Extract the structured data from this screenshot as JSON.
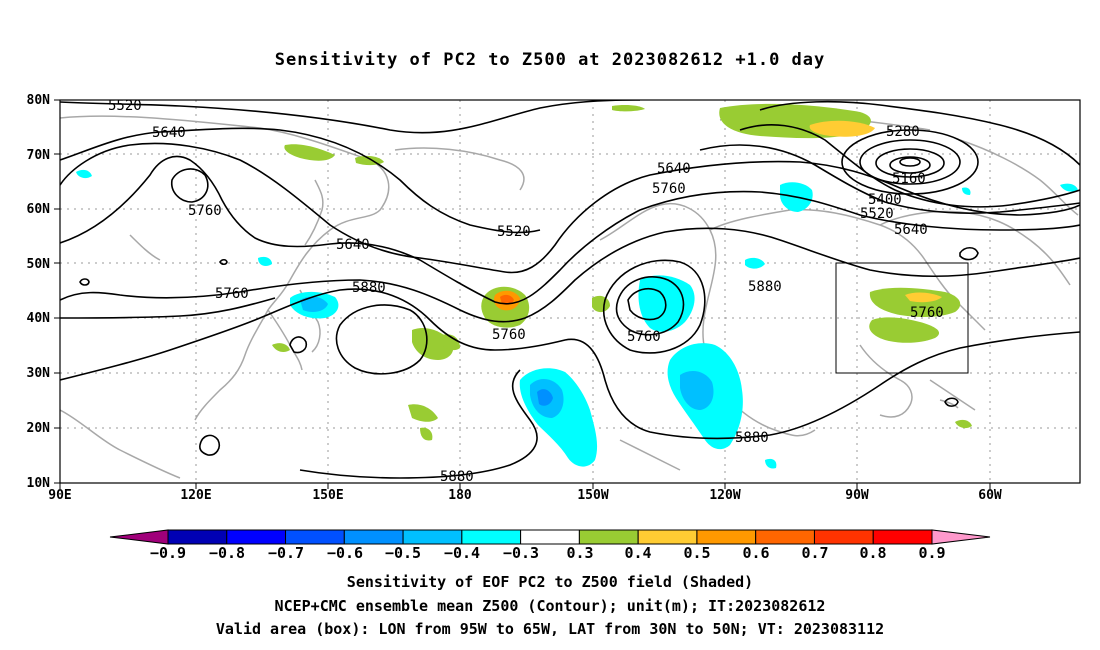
{
  "title": "Sensitivity of PC2 to Z500 at 2023082612 +1.0 day",
  "lat_labels": [
    "80N",
    "70N",
    "60N",
    "50N",
    "40N",
    "30N",
    "20N",
    "10N"
  ],
  "lon_labels": [
    "90E",
    "120E",
    "150E",
    "180",
    "150W",
    "120W",
    "90W",
    "60W"
  ],
  "contour_labels": [
    "5520",
    "5640",
    "5760",
    "5640",
    "5760",
    "5880",
    "5640",
    "5760",
    "5520",
    "5280",
    "5160",
    "5400",
    "5520",
    "5640",
    "5760",
    "5880",
    "5760",
    "5880",
    "5880",
    "5760"
  ],
  "colorbar": {
    "labels": [
      "−0.9",
      "−0.8",
      "−0.7",
      "−0.6",
      "−0.5",
      "−0.4",
      "−0.3",
      "0.3",
      "0.4",
      "0.5",
      "0.6",
      "0.7",
      "0.8",
      "0.9"
    ],
    "colors": [
      "#a0007a",
      "#0000b4",
      "#0000ff",
      "#0050ff",
      "#0090ff",
      "#00c0ff",
      "#00ffff",
      "#ffffff",
      "#99cc33",
      "#ffcc33",
      "#ff9900",
      "#ff6600",
      "#ff3300",
      "#ff0000",
      "#ff99cc"
    ]
  },
  "caption": [
    "Sensitivity of EOF PC2 to Z500 field (Shaded)",
    "NCEP+CMC ensemble mean Z500 (Contour); unit(m); IT:2023082612",
    "Valid area (box): LON from 95W to 65W, LAT from 30N to 50N; VT: 2023083112"
  ]
}
